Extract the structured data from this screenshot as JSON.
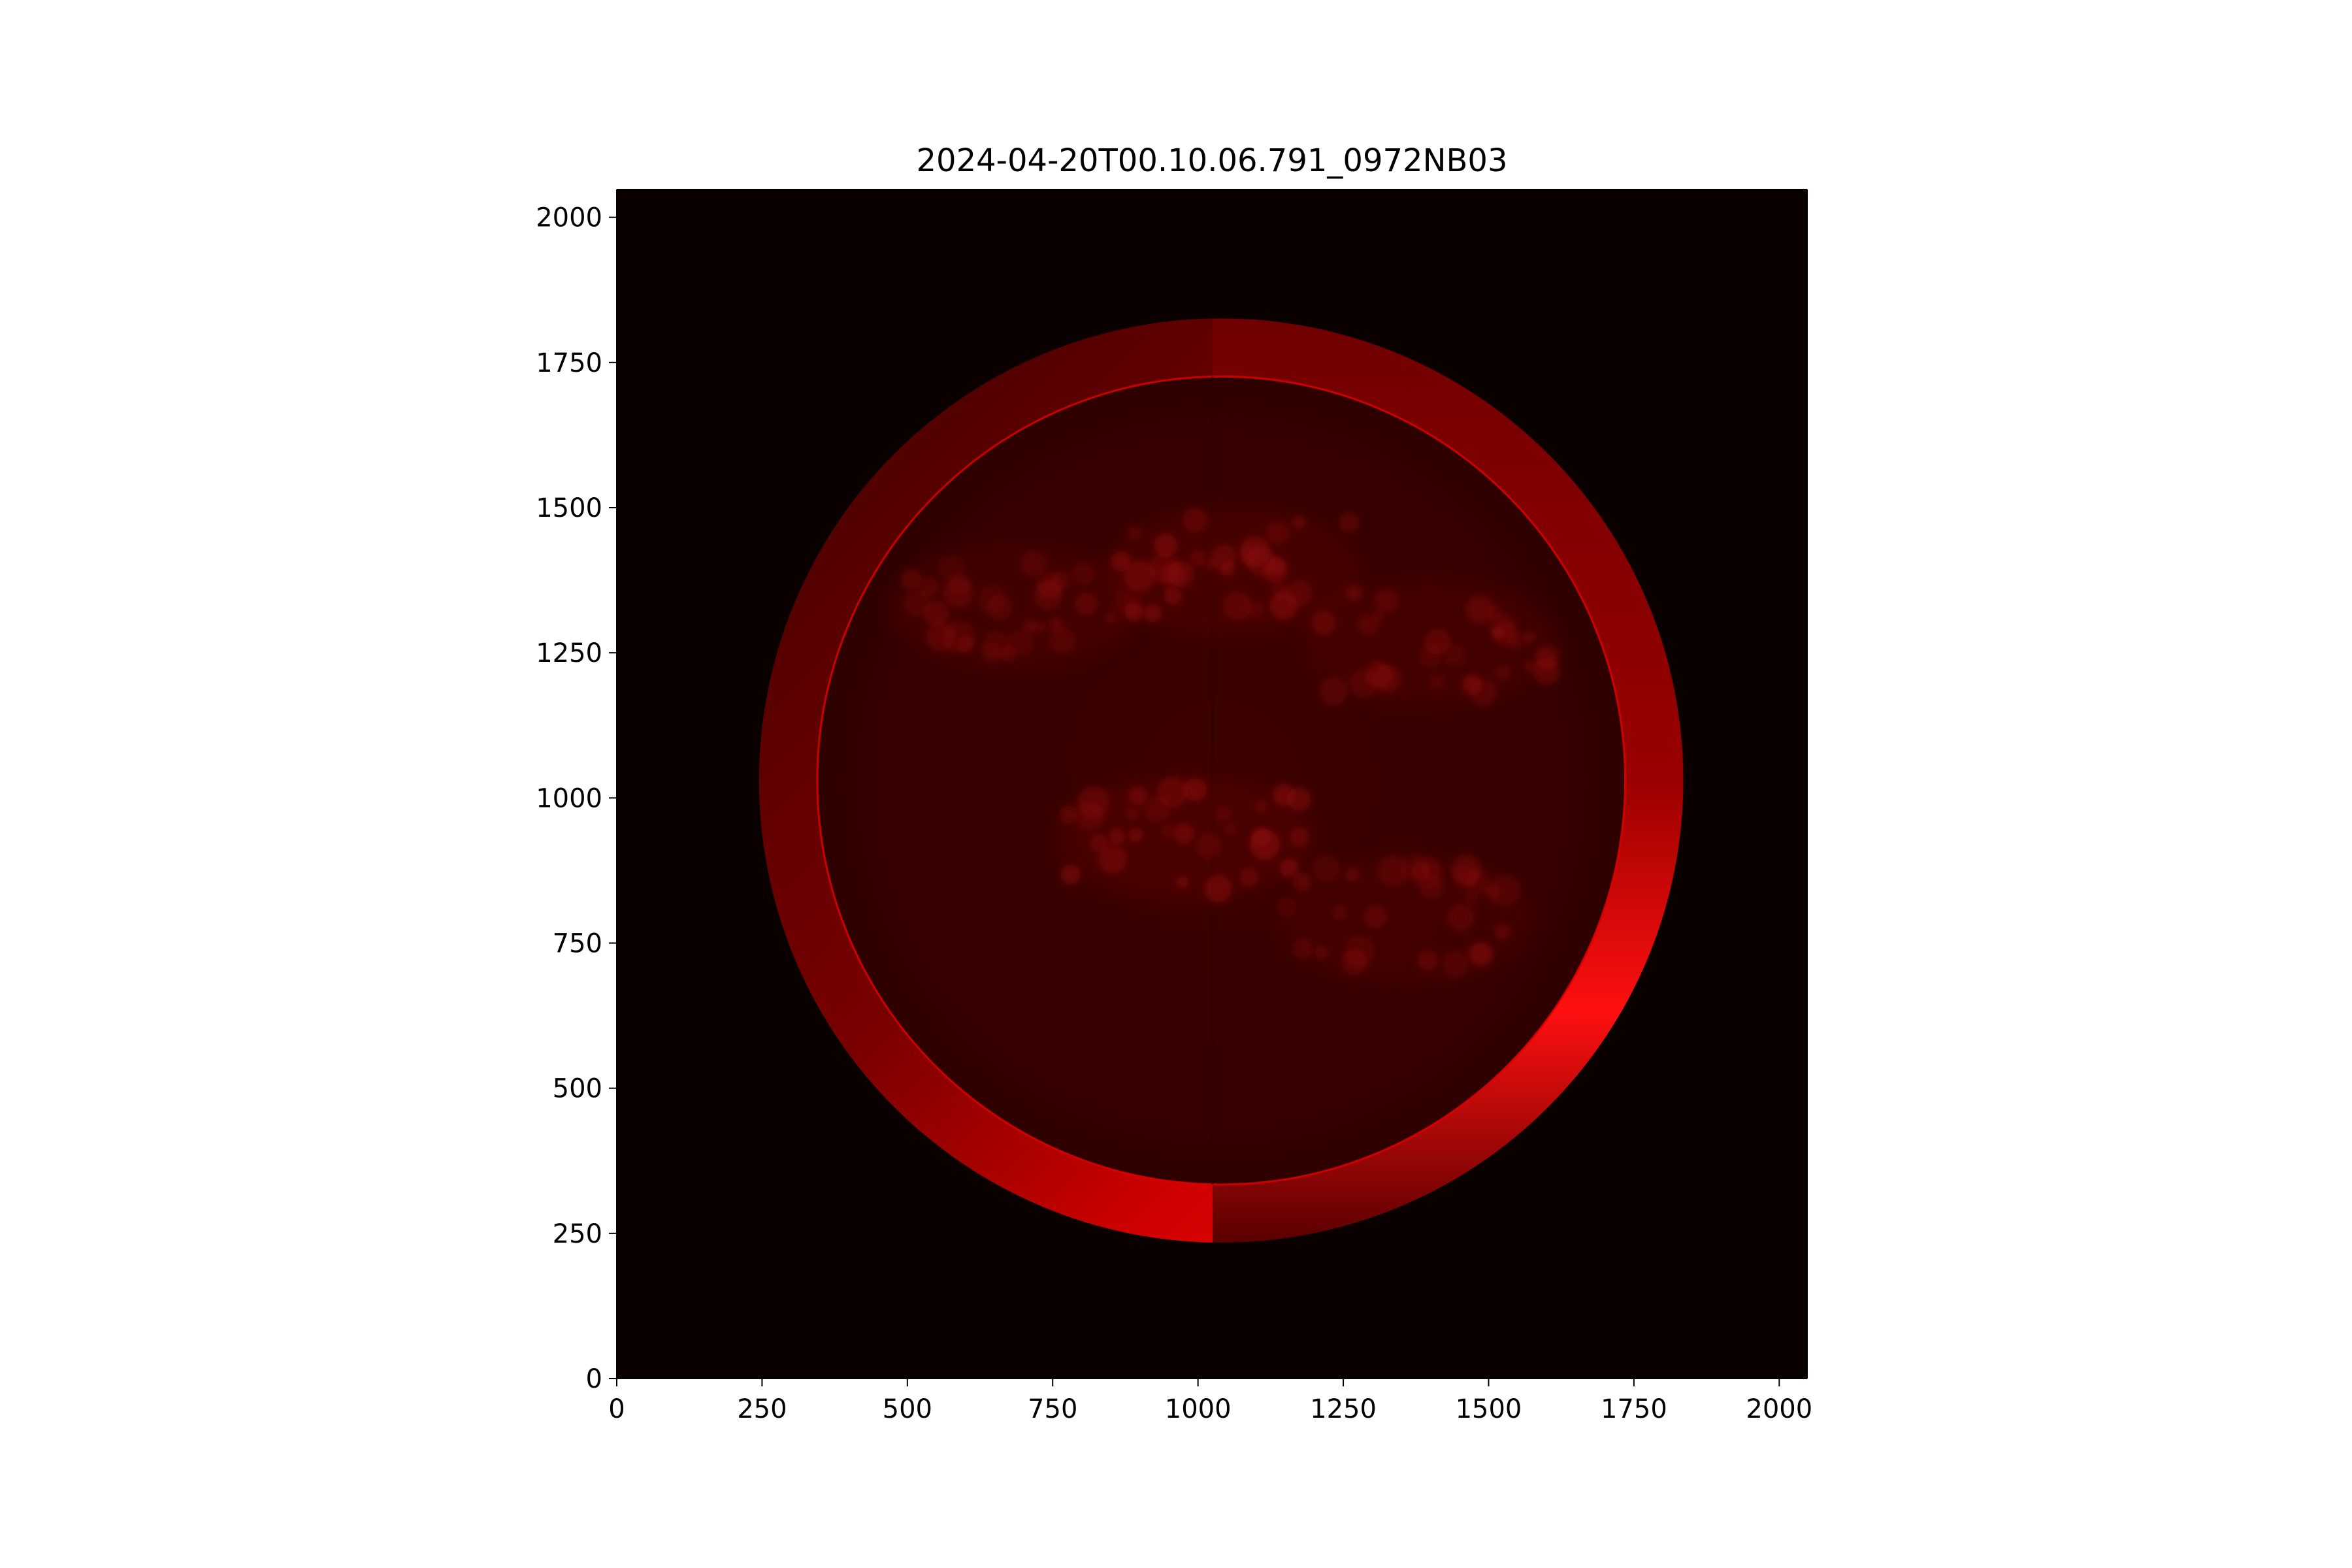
{
  "chart_data": {
    "type": "heatmap",
    "title": "2024-04-20T00.10.06.791_0972NB03",
    "xlabel": "",
    "ylabel": "",
    "xlim": [
      0,
      2048
    ],
    "ylim": [
      0,
      2048
    ],
    "x_ticks": [
      0,
      250,
      500,
      750,
      1000,
      1250,
      1500,
      1750,
      2000
    ],
    "y_ticks": [
      0,
      250,
      500,
      750,
      1000,
      1250,
      1500,
      1750,
      2000
    ],
    "x_tick_labels": [
      "0",
      "250",
      "500",
      "750",
      "1000",
      "1250",
      "1500",
      "1750",
      "2000"
    ],
    "y_tick_labels": [
      "0",
      "250",
      "500",
      "750",
      "1000",
      "1250",
      "1500",
      "1750",
      "2000"
    ],
    "grid": false,
    "colormap": "red",
    "colors": {
      "background": "#0b0000",
      "disk": "#3a0000",
      "ring_dark": "#5a0000",
      "ring_bright": "#ff0a0a",
      "plage": "#6e0505"
    },
    "solar_disk": {
      "center": [
        1040,
        1030
      ],
      "inner_radius": 695,
      "outer_radius": 795,
      "seam_x": 1025
    },
    "active_regions": [
      {
        "label": "northern-band-west",
        "x": 680,
        "y": 1330,
        "intensity": 0.55
      },
      {
        "label": "northern-band-center",
        "x": 1060,
        "y": 1390,
        "intensity": 0.75
      },
      {
        "label": "northern-band-east",
        "x": 1400,
        "y": 1270,
        "intensity": 0.6
      },
      {
        "label": "southern-band-center",
        "x": 980,
        "y": 930,
        "intensity": 0.8
      },
      {
        "label": "southern-band-east",
        "x": 1360,
        "y": 790,
        "intensity": 0.55
      }
    ]
  }
}
